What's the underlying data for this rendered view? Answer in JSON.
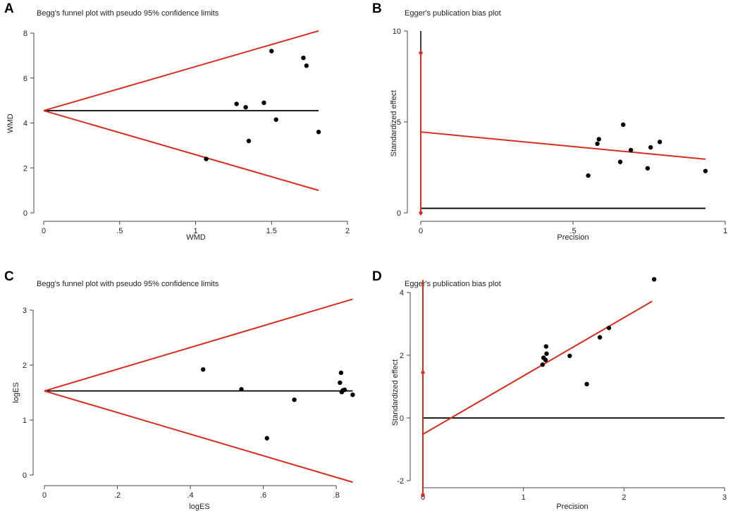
{
  "chart_data": [
    {
      "panel_label": "A",
      "type": "scatter",
      "plot_kind": "funnel",
      "title": "Begg's funnel plot with pseudo 95% confidence limits",
      "xlabel": "WMD",
      "ylabel": "WMD",
      "xlim": [
        0,
        2
      ],
      "ylim": [
        0,
        8
      ],
      "xticks": [
        0,
        0.5,
        1,
        1.5,
        2
      ],
      "xtick_labels": [
        "0",
        ".5",
        "1",
        "1.5",
        "2"
      ],
      "yticks": [
        0,
        2,
        4,
        6,
        8
      ],
      "ytick_labels": [
        "0",
        "2",
        "4",
        "6",
        "8"
      ],
      "points": [
        [
          1.07,
          2.4
        ],
        [
          1.27,
          4.85
        ],
        [
          1.33,
          4.7
        ],
        [
          1.35,
          3.2
        ],
        [
          1.45,
          4.9
        ],
        [
          1.5,
          7.2
        ],
        [
          1.53,
          4.15
        ],
        [
          1.71,
          6.9
        ],
        [
          1.73,
          6.55
        ],
        [
          1.81,
          3.6
        ]
      ],
      "center_line": {
        "x0": 0,
        "x1": 1.81,
        "y": 4.55
      },
      "funnel": {
        "apex": [
          0,
          4.55
        ],
        "upper_end": [
          1.81,
          8.1
        ],
        "lower_end": [
          1.81,
          1.0
        ]
      }
    },
    {
      "panel_label": "B",
      "type": "scatter",
      "plot_kind": "egger",
      "title": "Egger's publication bias plot",
      "xlabel": "Precision",
      "ylabel": "Standardized effect",
      "xlim": [
        0,
        1
      ],
      "ylim": [
        0,
        10
      ],
      "xticks": [
        0,
        0.5,
        1
      ],
      "xtick_labels": [
        "0",
        ".5",
        "1"
      ],
      "yticks": [
        0,
        5,
        10
      ],
      "ytick_labels": [
        "0",
        "5",
        "10"
      ],
      "points": [
        [
          0.55,
          2.05
        ],
        [
          0.58,
          3.8
        ],
        [
          0.585,
          4.05
        ],
        [
          0.655,
          2.8
        ],
        [
          0.665,
          4.85
        ],
        [
          0.69,
          3.45
        ],
        [
          0.745,
          2.45
        ],
        [
          0.755,
          3.6
        ],
        [
          0.785,
          3.9
        ],
        [
          0.935,
          2.3
        ]
      ],
      "regression_line": [
        [
          0,
          4.45
        ],
        [
          0.935,
          2.95
        ]
      ],
      "ci_bar": {
        "x": 0,
        "y_low": 0,
        "y_high": 8.8
      },
      "zero_line": {
        "x0": 0,
        "x1": 0.935,
        "y": 0.25
      },
      "y_axis_line": {
        "x": 0,
        "y0": 0,
        "y1": 10
      }
    },
    {
      "panel_label": "C",
      "type": "scatter",
      "plot_kind": "funnel",
      "title": "Begg's funnel plot with pseudo 95% confidence limits",
      "xlabel": "logES",
      "ylabel": "logES",
      "xlim": [
        0,
        0.85
      ],
      "ylim": [
        0,
        3
      ],
      "xticks": [
        0,
        0.2,
        0.4,
        0.6,
        0.8
      ],
      "xtick_labels": [
        "0",
        ".2",
        ".4",
        ".6",
        ".8"
      ],
      "yticks": [
        0,
        1,
        2,
        3
      ],
      "ytick_labels": [
        "0",
        "1",
        "2",
        "3"
      ],
      "points": [
        [
          0.435,
          1.92
        ],
        [
          0.54,
          1.56
        ],
        [
          0.61,
          0.67
        ],
        [
          0.685,
          1.37
        ],
        [
          0.81,
          1.68
        ],
        [
          0.813,
          1.86
        ],
        [
          0.815,
          1.51
        ],
        [
          0.818,
          1.54
        ],
        [
          0.823,
          1.55
        ],
        [
          0.845,
          1.46
        ]
      ],
      "center_line": {
        "x0": 0,
        "x1": 0.845,
        "y": 1.53
      },
      "funnel": {
        "apex": [
          0,
          1.53
        ],
        "upper_end": [
          0.845,
          3.2
        ],
        "lower_end": [
          0.845,
          -0.13
        ]
      }
    },
    {
      "panel_label": "D",
      "type": "scatter",
      "plot_kind": "egger",
      "title": "Egger's publication bias plot",
      "xlabel": "Precision",
      "ylabel": "Standardized effect",
      "xlim": [
        0,
        3
      ],
      "ylim": [
        -2,
        4
      ],
      "xticks": [
        0,
        1,
        2,
        3
      ],
      "xtick_labels": [
        "0",
        "1",
        "2",
        "3"
      ],
      "yticks": [
        -2,
        0,
        2,
        4
      ],
      "ytick_labels": [
        "-2",
        "0",
        "2",
        "4"
      ],
      "points": [
        [
          1.19,
          1.7
        ],
        [
          1.2,
          1.92
        ],
        [
          1.22,
          1.85
        ],
        [
          1.225,
          2.28
        ],
        [
          1.23,
          2.05
        ],
        [
          1.46,
          1.98
        ],
        [
          1.63,
          1.08
        ],
        [
          1.76,
          2.57
        ],
        [
          1.85,
          2.87
        ],
        [
          2.3,
          4.42
        ]
      ],
      "regression_line": [
        [
          0,
          -0.52
        ],
        [
          2.28,
          3.72
        ]
      ],
      "ci_bar": {
        "x": 0,
        "y_low": -2.45,
        "y_high": 1.45
      },
      "red_vertical_extent": [
        -2.45,
        4.4
      ],
      "zero_line": {
        "x0": 0,
        "x1": 3,
        "y": 0
      }
    }
  ]
}
